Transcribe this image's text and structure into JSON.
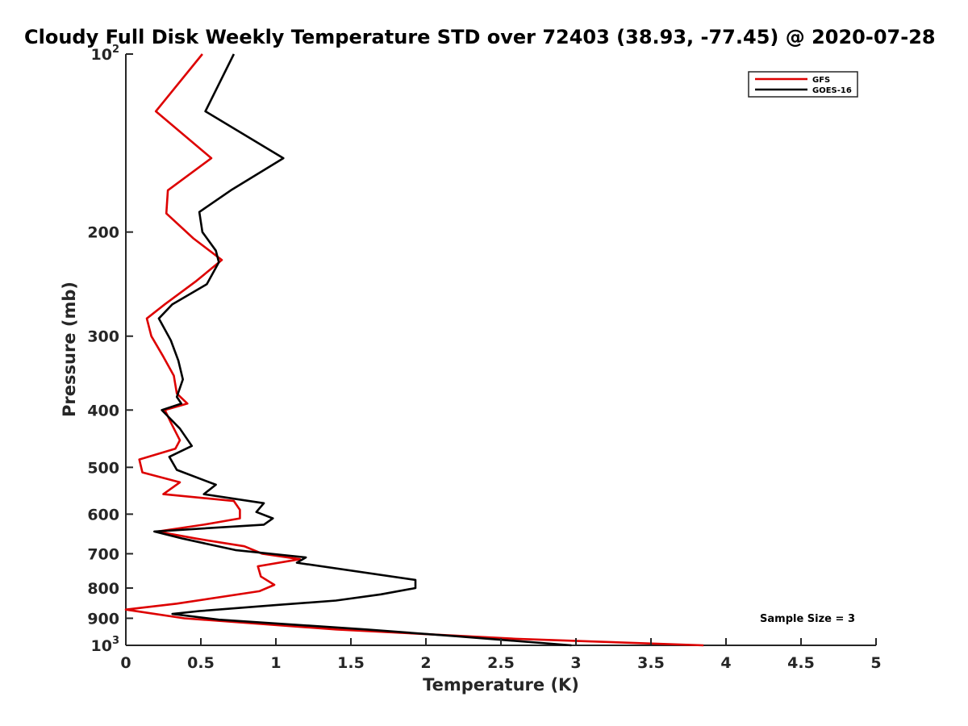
{
  "chart_data": {
    "type": "line",
    "title": "Cloudy Full Disk Weekly Temperature STD over 72403 (38.93, -77.45) @ 2020-07-28",
    "xlabel": "Temperature (K)",
    "ylabel": "Pressure (mb)",
    "xlim": [
      0,
      5
    ],
    "ylim": [
      100,
      1000
    ],
    "y_scale": "log",
    "y_reversed": true,
    "x_ticks": [
      "0",
      "0.5",
      "1",
      "1.5",
      "2",
      "2.5",
      "3",
      "3.5",
      "4",
      "4.5",
      "5"
    ],
    "y_ticks": [
      {
        "value": 100,
        "base": "10",
        "exp": "2"
      },
      {
        "value": 200,
        "label": "200"
      },
      {
        "value": 300,
        "label": "300"
      },
      {
        "value": 400,
        "label": "400"
      },
      {
        "value": 500,
        "label": "500"
      },
      {
        "value": 600,
        "label": "600"
      },
      {
        "value": 700,
        "label": "700"
      },
      {
        "value": 800,
        "label": "800"
      },
      {
        "value": 900,
        "label": "900"
      },
      {
        "value": 1000,
        "base": "10",
        "exp": "3"
      }
    ],
    "grid": false,
    "legend_position": "top-right",
    "annotation": "Sample Size = 3",
    "series": [
      {
        "name": "GFS",
        "color": "#dd0000",
        "points": [
          [
            0.51,
            100
          ],
          [
            0.2,
            125
          ],
          [
            0.57,
            150
          ],
          [
            0.28,
            170
          ],
          [
            0.27,
            186
          ],
          [
            0.45,
            205
          ],
          [
            0.64,
            223
          ],
          [
            0.47,
            242
          ],
          [
            0.26,
            265
          ],
          [
            0.14,
            280
          ],
          [
            0.17,
            300
          ],
          [
            0.25,
            325
          ],
          [
            0.32,
            350
          ],
          [
            0.34,
            375
          ],
          [
            0.41,
            390
          ],
          [
            0.26,
            400
          ],
          [
            0.3,
            420
          ],
          [
            0.36,
            450
          ],
          [
            0.33,
            465
          ],
          [
            0.09,
            485
          ],
          [
            0.11,
            510
          ],
          [
            0.36,
            530
          ],
          [
            0.25,
            555
          ],
          [
            0.72,
            570
          ],
          [
            0.76,
            590
          ],
          [
            0.76,
            610
          ],
          [
            0.52,
            625
          ],
          [
            0.21,
            642
          ],
          [
            0.47,
            660
          ],
          [
            0.79,
            680
          ],
          [
            0.91,
            700
          ],
          [
            1.16,
            715
          ],
          [
            0.88,
            735
          ],
          [
            0.9,
            765
          ],
          [
            0.99,
            790
          ],
          [
            0.89,
            810
          ],
          [
            0.34,
            850
          ],
          [
            0.0,
            870
          ],
          [
            0.39,
            900
          ],
          [
            1.4,
            940
          ],
          [
            2.6,
            975
          ],
          [
            3.85,
            1000
          ]
        ]
      },
      {
        "name": "GOES-16",
        "color": "#000000",
        "points": [
          [
            0.72,
            100
          ],
          [
            0.53,
            125
          ],
          [
            1.05,
            150
          ],
          [
            0.7,
            170
          ],
          [
            0.49,
            185
          ],
          [
            0.51,
            200
          ],
          [
            0.6,
            215
          ],
          [
            0.62,
            225
          ],
          [
            0.54,
            245
          ],
          [
            0.31,
            265
          ],
          [
            0.22,
            280
          ],
          [
            0.3,
            305
          ],
          [
            0.35,
            330
          ],
          [
            0.38,
            355
          ],
          [
            0.34,
            380
          ],
          [
            0.37,
            390
          ],
          [
            0.24,
            400
          ],
          [
            0.36,
            430
          ],
          [
            0.44,
            460
          ],
          [
            0.29,
            480
          ],
          [
            0.34,
            505
          ],
          [
            0.6,
            535
          ],
          [
            0.52,
            555
          ],
          [
            0.92,
            575
          ],
          [
            0.87,
            595
          ],
          [
            0.98,
            610
          ],
          [
            0.92,
            625
          ],
          [
            0.19,
            642
          ],
          [
            0.38,
            660
          ],
          [
            0.73,
            690
          ],
          [
            1.2,
            710
          ],
          [
            1.14,
            725
          ],
          [
            1.93,
            775
          ],
          [
            1.93,
            800
          ],
          [
            1.7,
            820
          ],
          [
            1.4,
            840
          ],
          [
            1.0,
            855
          ],
          [
            0.49,
            875
          ],
          [
            0.31,
            885
          ],
          [
            0.62,
            905
          ],
          [
            1.6,
            940
          ],
          [
            2.2,
            965
          ],
          [
            2.97,
            1000
          ]
        ]
      }
    ]
  }
}
